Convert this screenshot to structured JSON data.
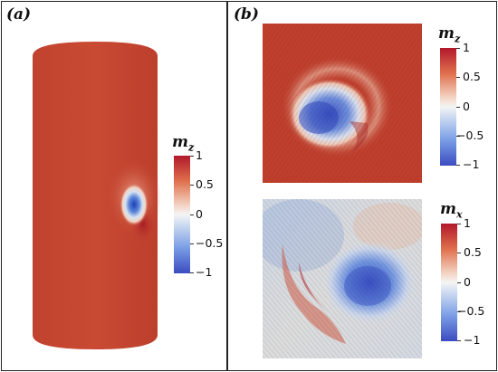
{
  "figure": {
    "panel_a": {
      "label": "(a)",
      "colorbar": {
        "title_base": "m",
        "title_sub": "z",
        "ticks": [
          "1",
          "0.5",
          "0",
          "−0.5",
          "−1"
        ]
      }
    },
    "panel_b": {
      "label": "(b)",
      "top": {
        "colorbar": {
          "title_base": "m",
          "title_sub": "z",
          "ticks": [
            "1",
            "0.5",
            "0",
            "−0.5",
            "−1"
          ]
        }
      },
      "bottom": {
        "colorbar": {
          "title_base": "m",
          "title_sub": "x",
          "ticks": [
            "1",
            "0.5",
            "0",
            "−0.5",
            "−1"
          ]
        }
      }
    }
  }
}
